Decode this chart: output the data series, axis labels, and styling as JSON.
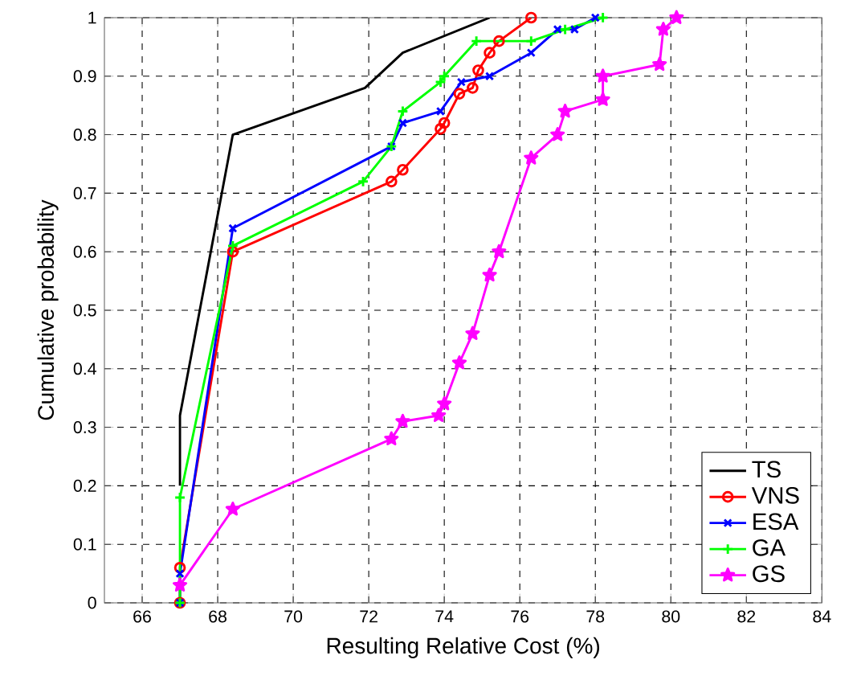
{
  "chart_data": {
    "type": "line",
    "xlabel": "Resulting Relative Cost (%)",
    "ylabel": "Cumulative probability",
    "xlim": [
      65,
      84
    ],
    "xticks": [
      66,
      68,
      70,
      72,
      74,
      76,
      78,
      80,
      82,
      84
    ],
    "ylim": [
      0,
      1
    ],
    "yticks": [
      0,
      0.1,
      0.2,
      0.3,
      0.4,
      0.5,
      0.6,
      0.7,
      0.8,
      0.9,
      1
    ],
    "grid": true,
    "legend": "bottom right",
    "line_style": "solid",
    "series": [
      {
        "name": "TS",
        "color": "#000000",
        "marker": "none",
        "x": [
          67,
          67,
          68.4,
          71.9,
          72.9,
          75.2
        ],
        "values": [
          0.2,
          0.32,
          0.8,
          0.88,
          0.94,
          1.0
        ]
      },
      {
        "name": "VNS",
        "color": "#ff0000",
        "marker": "circle",
        "x": [
          67,
          67,
          68.4,
          72.6,
          72.9,
          73.9,
          74.0,
          74.4,
          74.75,
          74.9,
          75.2,
          75.45,
          76.3
        ],
        "values": [
          0,
          0.06,
          0.6,
          0.72,
          0.74,
          0.81,
          0.82,
          0.87,
          0.88,
          0.91,
          0.94,
          0.96,
          1.0
        ]
      },
      {
        "name": "ESA",
        "color": "#0000ff",
        "marker": "cross",
        "x": [
          67,
          67,
          68.4,
          72.6,
          72.9,
          73.9,
          74.45,
          75.2,
          76.3,
          77.0,
          77.45,
          78.0
        ],
        "values": [
          0,
          0.05,
          0.64,
          0.78,
          0.82,
          0.84,
          0.89,
          0.9,
          0.94,
          0.98,
          0.98,
          1.0
        ]
      },
      {
        "name": "GA",
        "color": "#00ff00",
        "marker": "plus",
        "x": [
          67,
          67,
          68.4,
          71.85,
          72.6,
          72.9,
          73.9,
          74.0,
          74.85,
          76.3,
          77.2,
          78.2
        ],
        "values": [
          0,
          0.18,
          0.61,
          0.72,
          0.78,
          0.84,
          0.89,
          0.9,
          0.96,
          0.96,
          0.98,
          1.0
        ]
      },
      {
        "name": "GS",
        "color": "#ff00ff",
        "marker": "star",
        "x": [
          67,
          68.4,
          72.6,
          72.9,
          73.85,
          74.0,
          74.4,
          74.75,
          75.2,
          75.45,
          76.3,
          77.0,
          77.2,
          78.2,
          78.2,
          79.7,
          79.8,
          80.15
        ],
        "values": [
          0.03,
          0.16,
          0.28,
          0.31,
          0.32,
          0.34,
          0.41,
          0.46,
          0.56,
          0.6,
          0.76,
          0.8,
          0.84,
          0.86,
          0.9,
          0.92,
          0.98,
          1.0
        ]
      }
    ]
  }
}
